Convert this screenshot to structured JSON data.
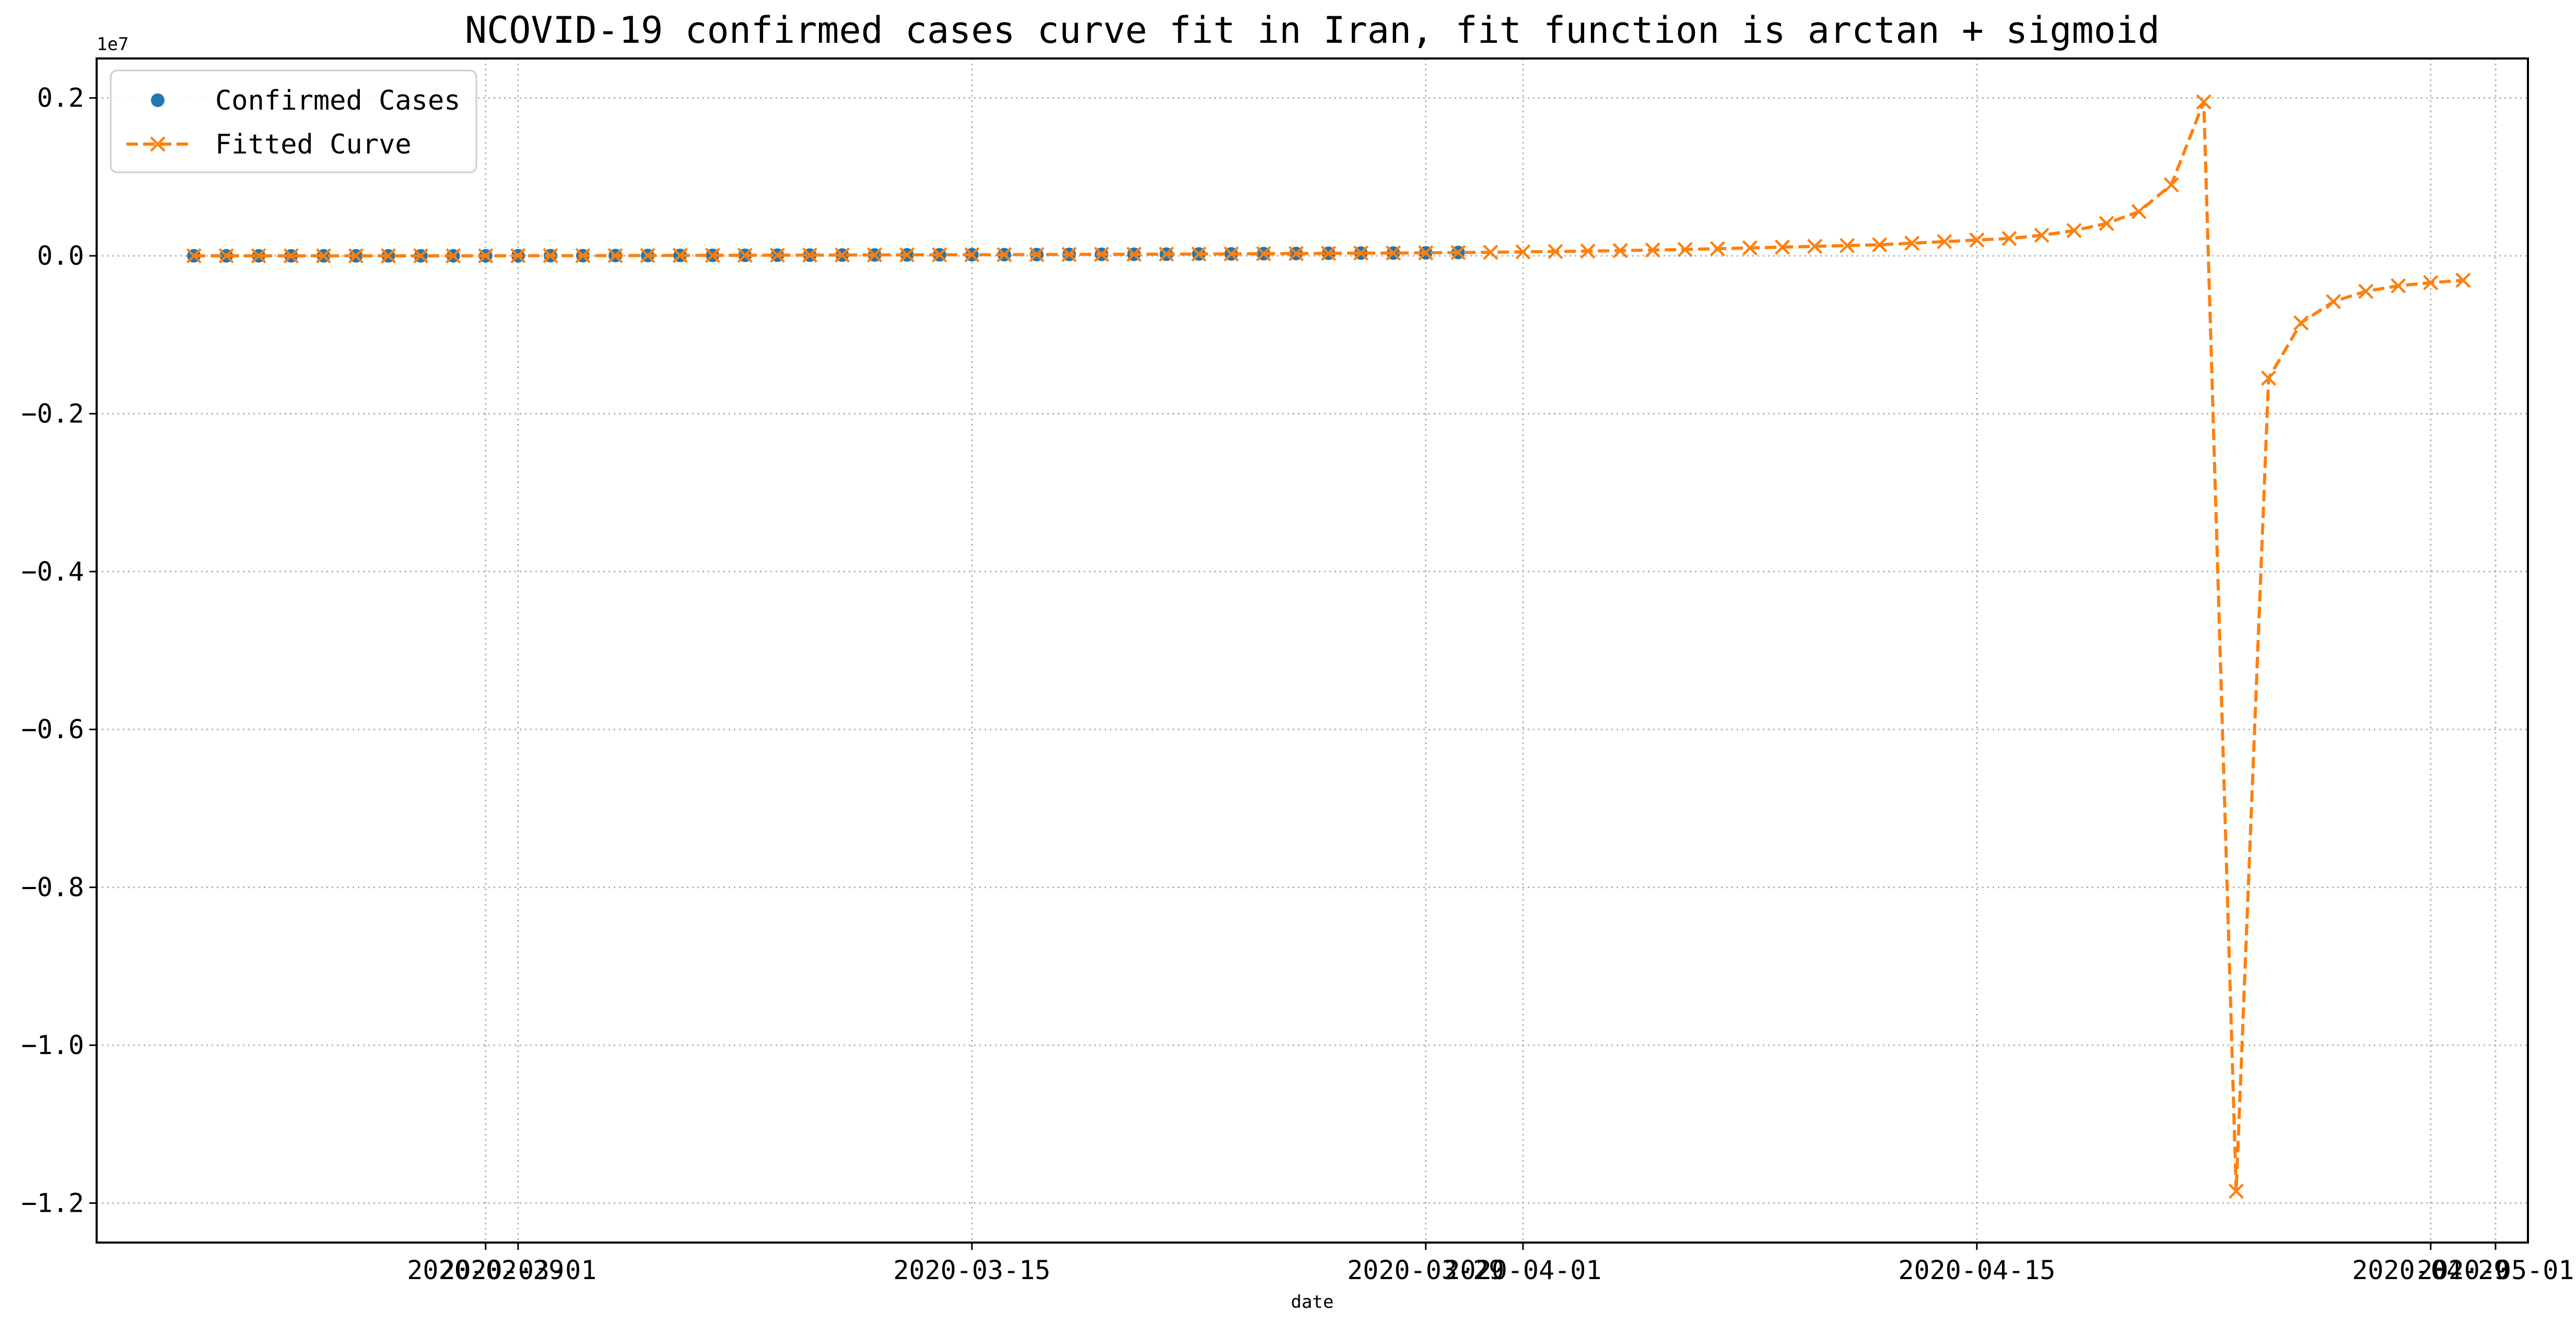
{
  "chart_data": {
    "type": "line",
    "title": "NCOVID-19 confirmed cases curve fit in Iran, fit function is arctan + sigmoid",
    "xlabel": "date",
    "ylabel": "",
    "y_offset_label": "1e7",
    "y_unit": 10000000,
    "ylim": [
      -1.25,
      0.25
    ],
    "xlim": [
      "2020-02-17",
      "2020-05-02"
    ],
    "grid": true,
    "legend_position": "top-left",
    "x_tick_labels": [
      {
        "date": "2020-02-29",
        "label": "2020-02-29"
      },
      {
        "date": "2020-03-01",
        "label": "2020-03-01"
      },
      {
        "date": "2020-03-15",
        "label": "2020-03-15"
      },
      {
        "date": "2020-03-29",
        "label": "2020-03-29"
      },
      {
        "date": "2020-04-01",
        "label": "2020-04-01"
      },
      {
        "date": "2020-04-15",
        "label": "2020-04-15"
      },
      {
        "date": "2020-04-29",
        "label": "2020-04-29"
      },
      {
        "date": "2020-05-01",
        "label": "2020-05-01"
      }
    ],
    "y_ticks": [
      0.2,
      0.0,
      -0.2,
      -0.4,
      -0.6,
      -0.8,
      -1.0,
      -1.2
    ],
    "y_tick_labels": [
      "0.2",
      "0.0",
      "−0.2",
      "−0.4",
      "−0.6",
      "−0.8",
      "−1.0",
      "−1.2"
    ],
    "series": [
      {
        "name": "Confirmed Cases",
        "color": "#1f77b4",
        "marker": "circle",
        "line": "none",
        "x": [
          "2020-02-20",
          "2020-02-21",
          "2020-02-22",
          "2020-02-23",
          "2020-02-24",
          "2020-02-25",
          "2020-02-26",
          "2020-02-27",
          "2020-02-28",
          "2020-02-29",
          "2020-03-01",
          "2020-03-02",
          "2020-03-03",
          "2020-03-04",
          "2020-03-05",
          "2020-03-06",
          "2020-03-07",
          "2020-03-08",
          "2020-03-09",
          "2020-03-10",
          "2020-03-11",
          "2020-03-12",
          "2020-03-13",
          "2020-03-14",
          "2020-03-15",
          "2020-03-16",
          "2020-03-17",
          "2020-03-18",
          "2020-03-19",
          "2020-03-20",
          "2020-03-21",
          "2020-03-22",
          "2020-03-23",
          "2020-03-24",
          "2020-03-25",
          "2020-03-26",
          "2020-03-27",
          "2020-03-28",
          "2020-03-29",
          "2020-03-30"
        ],
        "y": [
          0,
          0,
          0,
          0,
          0,
          0,
          0,
          0,
          0,
          0,
          0.0001,
          0.0002,
          0.0002,
          0.0003,
          0.0004,
          0.0005,
          0.0006,
          0.0007,
          0.0008,
          0.0009,
          0.001,
          0.0011,
          0.0012,
          0.0013,
          0.0014,
          0.0015,
          0.0016,
          0.0018,
          0.0019,
          0.002,
          0.0021,
          0.0023,
          0.0024,
          0.0027,
          0.0029,
          0.0032,
          0.0035,
          0.0035,
          0.0038,
          0.0042
        ]
      },
      {
        "name": "Fitted Curve",
        "color": "#ff7f0e",
        "marker": "x",
        "line": "dashed",
        "x": [
          "2020-02-20",
          "2020-02-21",
          "2020-02-22",
          "2020-02-23",
          "2020-02-24",
          "2020-02-25",
          "2020-02-26",
          "2020-02-27",
          "2020-02-28",
          "2020-02-29",
          "2020-03-01",
          "2020-03-02",
          "2020-03-03",
          "2020-03-04",
          "2020-03-05",
          "2020-03-06",
          "2020-03-07",
          "2020-03-08",
          "2020-03-09",
          "2020-03-10",
          "2020-03-11",
          "2020-03-12",
          "2020-03-13",
          "2020-03-14",
          "2020-03-15",
          "2020-03-16",
          "2020-03-17",
          "2020-03-18",
          "2020-03-19",
          "2020-03-20",
          "2020-03-21",
          "2020-03-22",
          "2020-03-23",
          "2020-03-24",
          "2020-03-25",
          "2020-03-26",
          "2020-03-27",
          "2020-03-28",
          "2020-03-29",
          "2020-03-30",
          "2020-03-31",
          "2020-04-01",
          "2020-04-02",
          "2020-04-03",
          "2020-04-04",
          "2020-04-05",
          "2020-04-06",
          "2020-04-07",
          "2020-04-08",
          "2020-04-09",
          "2020-04-10",
          "2020-04-11",
          "2020-04-12",
          "2020-04-13",
          "2020-04-14",
          "2020-04-15",
          "2020-04-16",
          "2020-04-17",
          "2020-04-18",
          "2020-04-19",
          "2020-04-20",
          "2020-04-21",
          "2020-04-22",
          "2020-04-23",
          "2020-04-24",
          "2020-04-25",
          "2020-04-26",
          "2020-04-27",
          "2020-04-28",
          "2020-04-29",
          "2020-04-30"
        ],
        "y": [
          0,
          0,
          0,
          0,
          0,
          0,
          0,
          0,
          0,
          0,
          0.0001,
          0.0002,
          0.0002,
          0.0003,
          0.0004,
          0.0005,
          0.0006,
          0.0007,
          0.0008,
          0.0009,
          0.001,
          0.0011,
          0.0012,
          0.0013,
          0.0014,
          0.0015,
          0.0016,
          0.0018,
          0.0019,
          0.002,
          0.0021,
          0.0023,
          0.0024,
          0.0027,
          0.0029,
          0.0032,
          0.0035,
          0.0035,
          0.0038,
          0.0042,
          0.0045,
          0.005,
          0.0055,
          0.006,
          0.0066,
          0.0073,
          0.008,
          0.009,
          0.01,
          0.011,
          0.012,
          0.013,
          0.014,
          0.016,
          0.018,
          0.02,
          0.022,
          0.026,
          0.032,
          0.041,
          0.056,
          0.09,
          0.195,
          -1.185,
          -0.155,
          -0.085,
          -0.058,
          -0.045,
          -0.038,
          -0.034,
          -0.031
        ]
      }
    ]
  }
}
